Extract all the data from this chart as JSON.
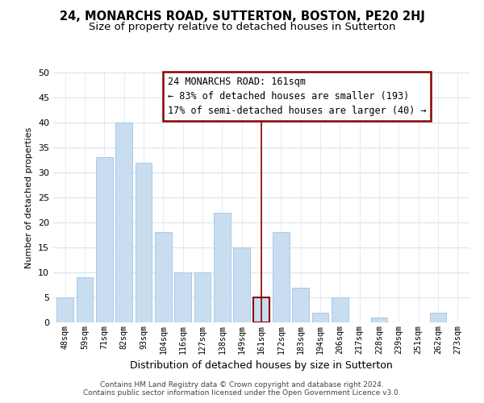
{
  "title": "24, MONARCHS ROAD, SUTTERTON, BOSTON, PE20 2HJ",
  "subtitle": "Size of property relative to detached houses in Sutterton",
  "xlabel": "Distribution of detached houses by size in Sutterton",
  "ylabel": "Number of detached properties",
  "footer_line1": "Contains HM Land Registry data © Crown copyright and database right 2024.",
  "footer_line2": "Contains public sector information licensed under the Open Government Licence v3.0.",
  "bar_labels": [
    "48sqm",
    "59sqm",
    "71sqm",
    "82sqm",
    "93sqm",
    "104sqm",
    "116sqm",
    "127sqm",
    "138sqm",
    "149sqm",
    "161sqm",
    "172sqm",
    "183sqm",
    "194sqm",
    "206sqm",
    "217sqm",
    "228sqm",
    "239sqm",
    "251sqm",
    "262sqm",
    "273sqm"
  ],
  "bar_values": [
    5,
    9,
    33,
    40,
    32,
    18,
    10,
    10,
    22,
    15,
    5,
    18,
    7,
    2,
    5,
    0,
    1,
    0,
    0,
    2,
    0
  ],
  "bar_color": "#c9ddf0",
  "bar_edge_color": "#a8c8e8",
  "highlight_index": 10,
  "highlight_line_color": "#8b0000",
  "ylim": [
    0,
    50
  ],
  "yticks": [
    0,
    5,
    10,
    15,
    20,
    25,
    30,
    35,
    40,
    45,
    50
  ],
  "annotation_title": "24 MONARCHS ROAD: 161sqm",
  "annotation_line1": "← 83% of detached houses are smaller (193)",
  "annotation_line2": "17% of semi-detached houses are larger (40) →",
  "annotation_box_edge_color": "#8b0000",
  "grid_color": "#d8e4f0",
  "background_color": "#ffffff",
  "title_fontsize": 10.5,
  "subtitle_fontsize": 9.5,
  "annotation_fontsize": 8.5,
  "footer_fontsize": 6.5,
  "xlabel_fontsize": 9,
  "ylabel_fontsize": 8
}
